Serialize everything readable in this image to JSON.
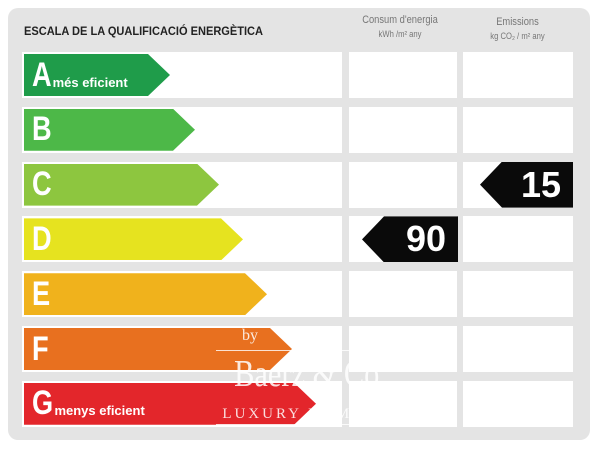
{
  "header": {
    "title": "ESCALA DE LA QUALIFICACIÓ ENERGÈTICA",
    "col_energy": {
      "label": "Consum d'energia",
      "unit": "kWh /m² any"
    },
    "col_emissions": {
      "label": "Emissions",
      "unit": "kg CO₂ / m² any"
    }
  },
  "scale": [
    {
      "letter": "A",
      "desc": "més eficient",
      "color": "#1f9c4a"
    },
    {
      "letter": "B",
      "desc": "",
      "color": "#4db848"
    },
    {
      "letter": "C",
      "desc": "",
      "color": "#8dc63f"
    },
    {
      "letter": "D",
      "desc": "",
      "color": "#e6e31f"
    },
    {
      "letter": "E",
      "desc": "",
      "color": "#f0b21c"
    },
    {
      "letter": "F",
      "desc": "",
      "color": "#e8701f"
    },
    {
      "letter": "G",
      "desc": "menys eficient",
      "color": "#e3262b"
    }
  ],
  "ratings": {
    "energy": {
      "class": "D",
      "value": "90"
    },
    "emissions": {
      "class": "C",
      "value": "15"
    }
  },
  "watermark": {
    "by": "by",
    "brand": "Baerz & Co",
    "tagline": "LUXURY HOMES"
  }
}
